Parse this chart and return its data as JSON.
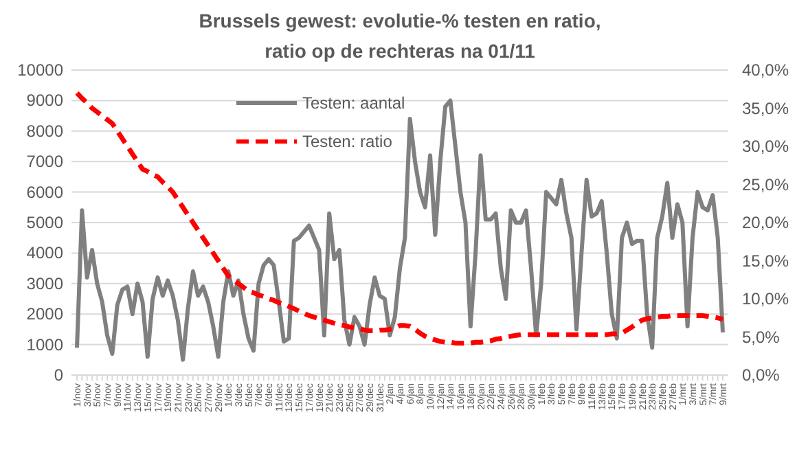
{
  "chart_data": {
    "type": "line",
    "title": "Brussels gewest: evolutie-% testen en ratio, ratio op de rechteras na 01/11",
    "categories": [
      "1/nov",
      null,
      "3/nov",
      null,
      "5/nov",
      null,
      "7/nov",
      null,
      "9/nov",
      null,
      "11/nov",
      null,
      "13/nov",
      null,
      "15/nov",
      null,
      "17/nov",
      null,
      "19/nov",
      null,
      "21/nov",
      null,
      "23/nov",
      null,
      "25/nov",
      null,
      "27/nov",
      null,
      "29/nov",
      null,
      "1/dec",
      null,
      "3/dec",
      null,
      "5/dec",
      null,
      "7/dec",
      null,
      "9/dec",
      null,
      "11/dec",
      null,
      "13/dec",
      null,
      "15/dec",
      null,
      "17/dec",
      null,
      "19/dec",
      null,
      "21/dec",
      null,
      "23/dec",
      null,
      "25/dec",
      null,
      "27/dec",
      null,
      "29/dec",
      null,
      "31/dec",
      null,
      "2/jan",
      null,
      "4/jan",
      null,
      "6/jan",
      null,
      "8/jan",
      null,
      "10/jan",
      null,
      "12/jan",
      null,
      "14/jan",
      null,
      "16/jan",
      null,
      "18/jan",
      null,
      "20/jan",
      null,
      "22/jan",
      null,
      "24/jan",
      null,
      "26/jan",
      null,
      "28/jan",
      null,
      "30/jan",
      null,
      "1/feb",
      null,
      "3/feb",
      null,
      "5/feb",
      null,
      "7/feb",
      null,
      "9/feb",
      null,
      "11/feb",
      null,
      "13/feb",
      null,
      "15/feb",
      null,
      "17/feb",
      null,
      "19/feb",
      null,
      "21/feb",
      null,
      "23/feb",
      null,
      "25/feb",
      null,
      "27/feb",
      null,
      "1/mrt",
      null,
      "3/mrt",
      null,
      "5/mrt",
      null,
      "7/mrt",
      null,
      "9/mrt"
    ],
    "series": [
      {
        "name": "Testen: aantal",
        "color": "#808080",
        "line_style": "solid",
        "values": [
          900,
          5400,
          3200,
          4100,
          3000,
          2400,
          1300,
          700,
          2300,
          2800,
          2900,
          2000,
          3000,
          2400,
          600,
          2500,
          3200,
          2600,
          3100,
          2600,
          1800,
          500,
          2200,
          3400,
          2600,
          2900,
          2400,
          1600,
          600,
          2400,
          3400,
          2600,
          3100,
          2000,
          1200,
          800,
          3000,
          3600,
          3800,
          3600,
          2400,
          1100,
          1200,
          4400,
          4500,
          4700,
          4900,
          4500,
          4100,
          1300,
          5300,
          3800,
          4100,
          1800,
          1000,
          1900,
          1600,
          1000,
          2300,
          3200,
          2600,
          2500,
          1300,
          1900,
          3500,
          4500,
          8400,
          7000,
          6000,
          5500,
          7200,
          4600,
          7000,
          8800,
          9000,
          7500,
          6000,
          5000,
          1600,
          4000,
          7200,
          5100,
          5100,
          5300,
          3500,
          2500,
          5400,
          5000,
          5000,
          5400,
          3500,
          1300,
          3000,
          6000,
          5800,
          5600,
          6400,
          5300,
          4500,
          1500,
          4000,
          6400,
          5200,
          5300,
          5700,
          4000,
          2000,
          1200,
          4500,
          5000,
          4300,
          4400,
          4400,
          2000,
          900,
          4500,
          5200,
          6300,
          4500,
          5600,
          5000,
          1600,
          4500,
          6000,
          5500,
          5400,
          5900,
          4500,
          1400
        ]
      },
      {
        "name": "Testen: ratio",
        "color": "#ff0000",
        "line_style": "dashed",
        "axis": "y2",
        "values": [
          37,
          36.3,
          35.7,
          35,
          34.5,
          34,
          33.5,
          33,
          32,
          31,
          30,
          29,
          28,
          27,
          26.7,
          26.3,
          26,
          25.3,
          24.7,
          24,
          23,
          22,
          21,
          20,
          19,
          18,
          17,
          16,
          15,
          14,
          13,
          12.5,
          12,
          11.5,
          11,
          10.8,
          10.5,
          10.3,
          10,
          9.8,
          9.5,
          9.3,
          9,
          8.7,
          8.4,
          8.1,
          7.8,
          7.6,
          7.4,
          7.2,
          7,
          6.8,
          6.6,
          6.5,
          6.3,
          6.2,
          6.1,
          5.9,
          5.8,
          5.8,
          5.9,
          5.9,
          6,
          6.2,
          6.5,
          6.5,
          6.4,
          6,
          5.5,
          5.1,
          4.8,
          4.6,
          4.4,
          4.3,
          4.3,
          4.2,
          4.2,
          4.2,
          4.2,
          4.3,
          4.3,
          4.4,
          4.5,
          4.7,
          4.8,
          5,
          5.1,
          5.2,
          5.3,
          5.3,
          5.3,
          5.3,
          5.3,
          5.3,
          5.3,
          5.3,
          5.3,
          5.3,
          5.3,
          5.3,
          5.3,
          5.3,
          5.3,
          5.3,
          5.3,
          5.3,
          5.4,
          5.4,
          5.5,
          5.9,
          6.3,
          6.8,
          7.2,
          7.4,
          7.5,
          7.6,
          7.7,
          7.7,
          7.8,
          7.8,
          7.8,
          7.8,
          7.8,
          7.8,
          7.8,
          7.7,
          7.6,
          7.5,
          7.3
        ]
      }
    ],
    "ylim": [
      0,
      10000
    ],
    "yticks": [
      0,
      1000,
      2000,
      3000,
      4000,
      5000,
      6000,
      7000,
      8000,
      9000,
      10000
    ],
    "y2lim": [
      0,
      40
    ],
    "y2ticks": [
      {
        "value": 0,
        "label": "0,0%"
      },
      {
        "value": 5,
        "label": "5,0%"
      },
      {
        "value": 10,
        "label": "10,0%"
      },
      {
        "value": 15,
        "label": "15,0%"
      },
      {
        "value": 20,
        "label": "20,0%"
      },
      {
        "value": 25,
        "label": "25,0%"
      },
      {
        "value": 30,
        "label": "30,0%"
      },
      {
        "value": 35,
        "label": "35,0%"
      },
      {
        "value": 40,
        "label": "40,0%"
      }
    ],
    "grid": "y",
    "legend": "top",
    "marker": "none"
  }
}
